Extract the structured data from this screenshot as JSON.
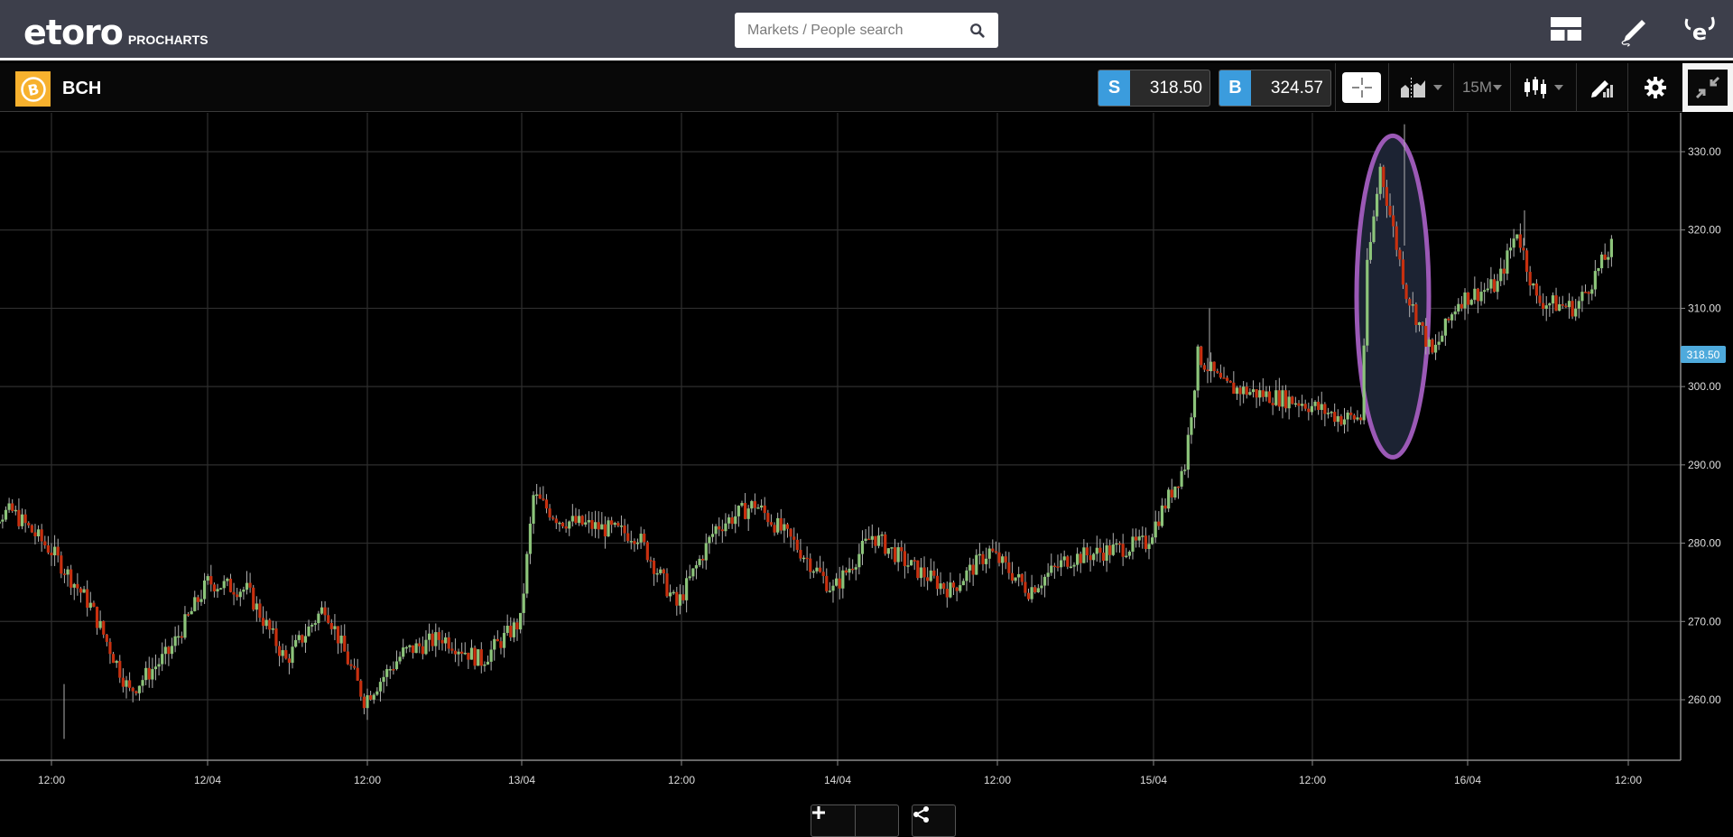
{
  "header": {
    "logo_text": "etoro",
    "logo_sub": "PROCHARTS",
    "search": {
      "placeholder": "Markets / People search",
      "value": ""
    },
    "icons": [
      "layout-icon",
      "pencil-draw-icon",
      "etoro-profile-icon"
    ]
  },
  "toolbar": {
    "instrument": "BCH",
    "instrument_icon": "bitcoin-cash-icon",
    "sell": {
      "label": "S",
      "price": "318.50"
    },
    "buy": {
      "label": "B",
      "price": "324.57"
    },
    "timeframe": "15M",
    "tools": [
      "crosshair-icon",
      "indicators-icon",
      "timeframe-dropdown",
      "candlestick-type-icon",
      "drawing-tools-icon",
      "settings-icon",
      "exit-fullscreen-icon"
    ]
  },
  "chart": {
    "last_price_label": "318.50",
    "zoom_out": "−",
    "zoom_in": "+",
    "colors": {
      "up": "#8cc47a",
      "down": "#c8300f",
      "wick": "#b0b0b0",
      "grid": "#2e2e2e",
      "axis": "#8a8a8a",
      "highlight_ellipse": "#9b59b6",
      "highlight_fill": "#1c2333",
      "last_price_bg": "#4eaadc"
    }
  },
  "chart_data": {
    "type": "candlestick",
    "title": "BCH 15M",
    "xlabel": "",
    "ylabel": "",
    "ylim": [
      254,
      334
    ],
    "y_ticks": [
      "330.00",
      "320.00",
      "310.00",
      "300.00",
      "290.00",
      "280.00",
      "270.00",
      "260.00"
    ],
    "x_ticks": [
      "12:00",
      "12/04",
      "12:00",
      "13/04",
      "12:00",
      "14/04",
      "12:00",
      "15/04",
      "12:00",
      "16/04",
      "12:00"
    ],
    "grid": true,
    "last_price": 318.5,
    "annotation": "Purple ellipse highlighting price spike on 15/04 afternoon (~295 to ~333)",
    "path_keypoints": [
      {
        "t": "11/04 06:00",
        "price": 283
      },
      {
        "t": "11/04 09:00",
        "price": 284
      },
      {
        "t": "11/04 12:00",
        "price": 279
      },
      {
        "t": "11/04 15:00",
        "price": 272
      },
      {
        "t": "11/04 18:00",
        "price": 261
      },
      {
        "t": "11/04 21:00",
        "price": 266
      },
      {
        "t": "12/04 00:00",
        "price": 275
      },
      {
        "t": "12/04 03:00",
        "price": 274
      },
      {
        "t": "12/04 06:00",
        "price": 265
      },
      {
        "t": "12/04 09:00",
        "price": 272
      },
      {
        "t": "12/04 12:00",
        "price": 260
      },
      {
        "t": "12/04 15:00",
        "price": 266
      },
      {
        "t": "12/04 18:00",
        "price": 268
      },
      {
        "t": "12/04 21:00",
        "price": 265
      },
      {
        "t": "13/04 00:00",
        "price": 270
      },
      {
        "t": "13/04 01:00",
        "price": 286
      },
      {
        "t": "13/04 03:00",
        "price": 283
      },
      {
        "t": "13/04 06:00",
        "price": 282
      },
      {
        "t": "13/04 09:00",
        "price": 281
      },
      {
        "t": "13/04 12:00",
        "price": 272
      },
      {
        "t": "13/04 15:00",
        "price": 282
      },
      {
        "t": "13/04 18:00",
        "price": 285
      },
      {
        "t": "13/04 21:00",
        "price": 280
      },
      {
        "t": "14/04 00:00",
        "price": 274
      },
      {
        "t": "14/04 03:00",
        "price": 281
      },
      {
        "t": "14/04 06:00",
        "price": 277
      },
      {
        "t": "14/04 09:00",
        "price": 274
      },
      {
        "t": "14/04 12:00",
        "price": 279
      },
      {
        "t": "14/04 15:00",
        "price": 274
      },
      {
        "t": "14/04 18:00",
        "price": 278
      },
      {
        "t": "14/04 21:00",
        "price": 279
      },
      {
        "t": "15/04 00:00",
        "price": 280
      },
      {
        "t": "15/04 03:00",
        "price": 290
      },
      {
        "t": "15/04 04:00",
        "price": 304
      },
      {
        "t": "15/04 06:00",
        "price": 300
      },
      {
        "t": "15/04 09:00",
        "price": 299
      },
      {
        "t": "15/04 12:00",
        "price": 298
      },
      {
        "t": "15/04 15:00",
        "price": 296
      },
      {
        "t": "15/04 16:30",
        "price": 296
      },
      {
        "t": "15/04 17:00",
        "price": 315
      },
      {
        "t": "15/04 18:00",
        "price": 328
      },
      {
        "t": "15/04 20:00",
        "price": 312
      },
      {
        "t": "15/04 22:00",
        "price": 304
      },
      {
        "t": "16/04 00:00",
        "price": 311
      },
      {
        "t": "16/04 03:00",
        "price": 313
      },
      {
        "t": "16/04 04:30",
        "price": 320
      },
      {
        "t": "16/04 06:00",
        "price": 311
      },
      {
        "t": "16/04 09:00",
        "price": 310
      },
      {
        "t": "16/04 12:00",
        "price": 318.5
      }
    ]
  }
}
